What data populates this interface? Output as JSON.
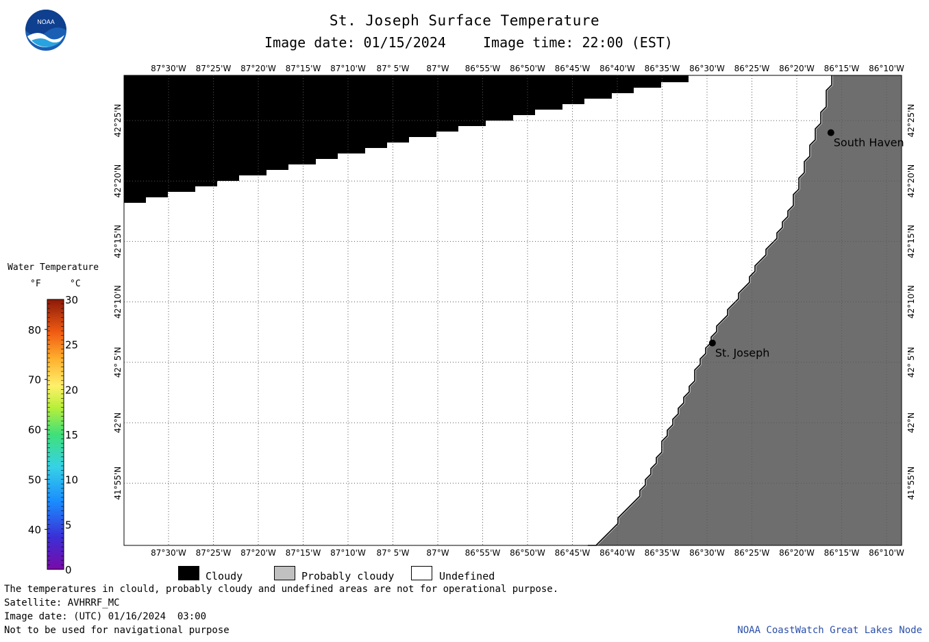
{
  "header": {
    "title": "St. Joseph Surface Temperature",
    "subtitle_date": "Image date: 01/15/2024",
    "subtitle_time": "Image time: 22:00 (EST)"
  },
  "logo": {
    "text": "NOAA"
  },
  "map": {
    "lon_labels": [
      "87°30'W",
      "87°25'W",
      "87°20'W",
      "87°15'W",
      "87°10'W",
      "87° 5'W",
      "87°W",
      "86°55'W",
      "86°50'W",
      "86°45'W",
      "86°40'W",
      "86°35'W",
      "86°30'W",
      "86°25'W",
      "86°20'W",
      "86°15'W",
      "86°10'W"
    ],
    "lat_labels": [
      "42°25'N",
      "42°20'N",
      "42°15'N",
      "42°10'N",
      "42° 5'N",
      "42°N",
      "41°55'N"
    ],
    "cities": [
      {
        "name": "South Haven",
        "lon": -86.27,
        "lat": 42.4
      },
      {
        "name": "St. Joseph",
        "lon": -86.49,
        "lat": 42.11
      }
    ],
    "colors": {
      "cloudy": "#000000",
      "land": "#6e6e6e",
      "undefined": "#ffffff",
      "grid": "#555555"
    }
  },
  "colorbar": {
    "title": "Water Temperature",
    "unit_f": "°F",
    "unit_c": "°C",
    "f_ticks": [
      "80",
      "70",
      "60",
      "50",
      "40"
    ],
    "c_ticks": [
      "30",
      "25",
      "20",
      "15",
      "10",
      "5",
      "0"
    ]
  },
  "legend": {
    "cloudy": "Cloudy",
    "probably_cloudy": "Probably cloudy",
    "undefined": "Undefined",
    "colors": {
      "cloudy": "#000000",
      "probably_cloudy": "#c0c0c0",
      "undefined": "#ffffff"
    }
  },
  "footer": {
    "note": "The temperatures in clould, probably cloudy and undefined areas are not for operational purpose.",
    "satellite": "Satellite: AVHRRF_MC",
    "utc_date": "Image date: (UTC) 01/16/2024  03:00",
    "warning": "Not to be used for navigational purpose",
    "credit": "NOAA CoastWatch Great Lakes Node"
  }
}
